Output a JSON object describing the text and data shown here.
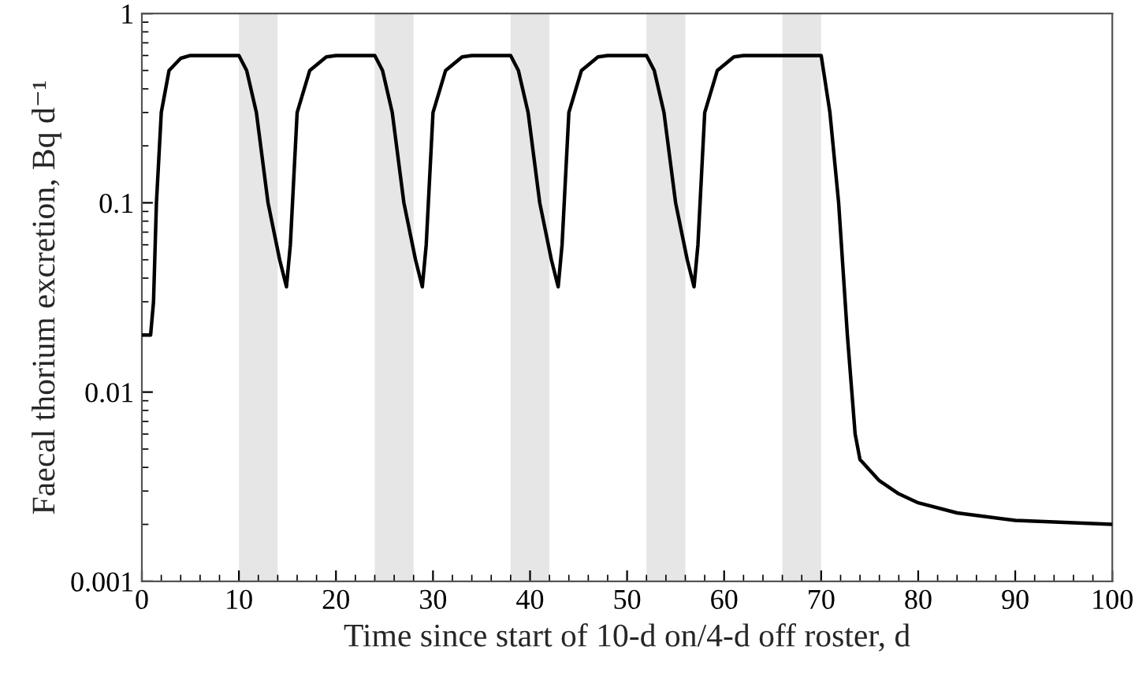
{
  "chart_data": {
    "type": "line",
    "xlabel": "Time since start of 10-d on/4-d off roster, d",
    "ylabel": "Faecal thorium excretion, Bq d⁻¹",
    "log": "y",
    "xlim": [
      0,
      100
    ],
    "xticks": [
      0,
      10,
      20,
      30,
      40,
      50,
      60,
      70,
      80,
      90,
      100
    ],
    "ylim": [
      0.001,
      1
    ],
    "yticks": [
      {
        "value": 1,
        "label": "1"
      },
      {
        "value": 0.1,
        "label": "0.1"
      },
      {
        "value": 0.01,
        "label": "0.01"
      },
      {
        "value": 0.001,
        "label": "0.001"
      }
    ],
    "grid": false,
    "legend": false,
    "line_style": "solid",
    "marker": "none",
    "bands": [
      {
        "axis": "x",
        "from": 10,
        "to": 14,
        "color": "#e6e6e6"
      },
      {
        "axis": "x",
        "from": 24,
        "to": 28,
        "color": "#e6e6e6"
      },
      {
        "axis": "x",
        "from": 38,
        "to": 42,
        "color": "#e6e6e6"
      },
      {
        "axis": "x",
        "from": 52,
        "to": 56,
        "color": "#e6e6e6"
      },
      {
        "axis": "x",
        "from": 66,
        "to": 70,
        "color": "#e6e6e6"
      }
    ],
    "series": [
      {
        "color": "#000000",
        "x": [
          0,
          0.9,
          1.2,
          1.5,
          2.0,
          2.8,
          4,
          5,
          10,
          10.8,
          11.8,
          13,
          14.2,
          14.9,
          15.3,
          16,
          17.3,
          19,
          20,
          24,
          24.8,
          25.8,
          27,
          28.2,
          28.9,
          29.3,
          30,
          31.3,
          33,
          34,
          38,
          38.8,
          39.8,
          41,
          42.2,
          42.9,
          43.3,
          44,
          45.3,
          47,
          48,
          52,
          52.8,
          53.8,
          55,
          56.2,
          56.9,
          57.3,
          58,
          59.3,
          61,
          62,
          70,
          70.9,
          71.8,
          72.7,
          73.5,
          74,
          76,
          78,
          80,
          84,
          90,
          95,
          100
        ],
        "values": [
          0.02,
          0.02,
          0.03,
          0.1,
          0.3,
          0.5,
          0.58,
          0.6,
          0.6,
          0.5,
          0.3,
          0.1,
          0.05,
          0.036,
          0.06,
          0.3,
          0.5,
          0.59,
          0.6,
          0.6,
          0.5,
          0.3,
          0.1,
          0.05,
          0.036,
          0.06,
          0.3,
          0.5,
          0.59,
          0.6,
          0.6,
          0.5,
          0.3,
          0.1,
          0.05,
          0.036,
          0.06,
          0.3,
          0.5,
          0.59,
          0.6,
          0.6,
          0.5,
          0.3,
          0.1,
          0.05,
          0.036,
          0.06,
          0.3,
          0.5,
          0.59,
          0.6,
          0.6,
          0.3,
          0.1,
          0.02,
          0.006,
          0.0044,
          0.0034,
          0.0029,
          0.0026,
          0.0023,
          0.0021,
          0.00205,
          0.002
        ]
      }
    ]
  }
}
